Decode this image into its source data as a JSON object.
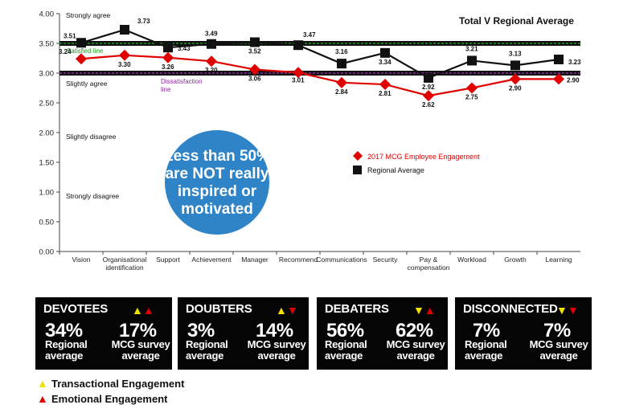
{
  "chart_data": {
    "type": "line",
    "title": "Total V Regional Average",
    "categories": [
      "Vision",
      "Organisational identification",
      "Support",
      "Achievement",
      "Manager",
      "Recommend",
      "Communications",
      "Security",
      "Pay & compensation",
      "Workload",
      "Growth",
      "Learning"
    ],
    "ylim": [
      0,
      4
    ],
    "yticks": [
      "0.00",
      "0.50",
      "1.00",
      "1.50",
      "2.00",
      "2.50",
      "3.00",
      "3.50",
      "4.00"
    ],
    "series": [
      {
        "name": "2017 MCG  Employee Engagement",
        "color": "#e00000",
        "values": [
          3.24,
          3.3,
          3.26,
          3.2,
          3.06,
          3.01,
          2.84,
          2.81,
          2.62,
          2.75,
          2.9,
          2.9
        ],
        "labels": [
          "3.24",
          "3.30",
          "3.26",
          "3.20",
          "3.06",
          "3.01",
          "2.84",
          "2.81",
          "2.62",
          "2.75",
          "2.90",
          "2.90"
        ]
      },
      {
        "name": "Regional Average",
        "color": "#111111",
        "values": [
          3.51,
          3.73,
          3.43,
          3.49,
          3.52,
          3.47,
          3.16,
          3.34,
          2.92,
          3.21,
          3.13,
          3.23
        ],
        "labels": [
          "3.51",
          "3.73",
          "3.43",
          "3.49",
          "3.52",
          "3.47",
          "3.16",
          "3.34",
          "2.92",
          "3.21",
          "3.13",
          "3.23"
        ]
      }
    ],
    "reference_lines": [
      {
        "value": 3.5,
        "label": "Satisfied line",
        "color": "#1a9a1a"
      },
      {
        "value": 3.0,
        "label": "Dissatisfaction line",
        "color": "#8e2a9a"
      }
    ],
    "scale_labels": [
      {
        "text": "Strongly agree",
        "value": 4.0
      },
      {
        "text": "Slightly agree",
        "value": 3.0
      },
      {
        "text": "Slightly disagree",
        "value": 2.0
      },
      {
        "text": "Strongly disagree",
        "value": 1.0
      }
    ],
    "callout": "Less than 50% are NOT really inspired or motivated",
    "grid": false,
    "legend": "center-right"
  },
  "cards": [
    {
      "title": "DEVOTEES",
      "triangles": [
        "up-yellow",
        "up-red"
      ],
      "regional": "34%",
      "mcg": "17%",
      "regional_label": "Regional average",
      "mcg_label": "MCG survey average"
    },
    {
      "title": "DOUBTERS",
      "triangles": [
        "up-yellow",
        "down-red"
      ],
      "regional": "3%",
      "mcg": "14%",
      "regional_label": "Regional average",
      "mcg_label": "MCG survey average"
    },
    {
      "title": "DEBATERS",
      "triangles": [
        "down-yellow",
        "up-red"
      ],
      "regional": "56%",
      "mcg": "62%",
      "regional_label": "Regional average",
      "mcg_label": "MCG survey average"
    },
    {
      "title": "DISCONNECTED",
      "triangles": [
        "down-yellow",
        "down-red"
      ],
      "regional": "7%",
      "mcg": "7%",
      "regional_label": "Regional average",
      "mcg_label": "MCG survey average"
    }
  ],
  "bottom_legend": [
    {
      "label": "Transactional Engagement",
      "icon": "up-triangle-yellow"
    },
    {
      "label": "Emotional Engagement",
      "icon": "up-triangle-red"
    }
  ]
}
